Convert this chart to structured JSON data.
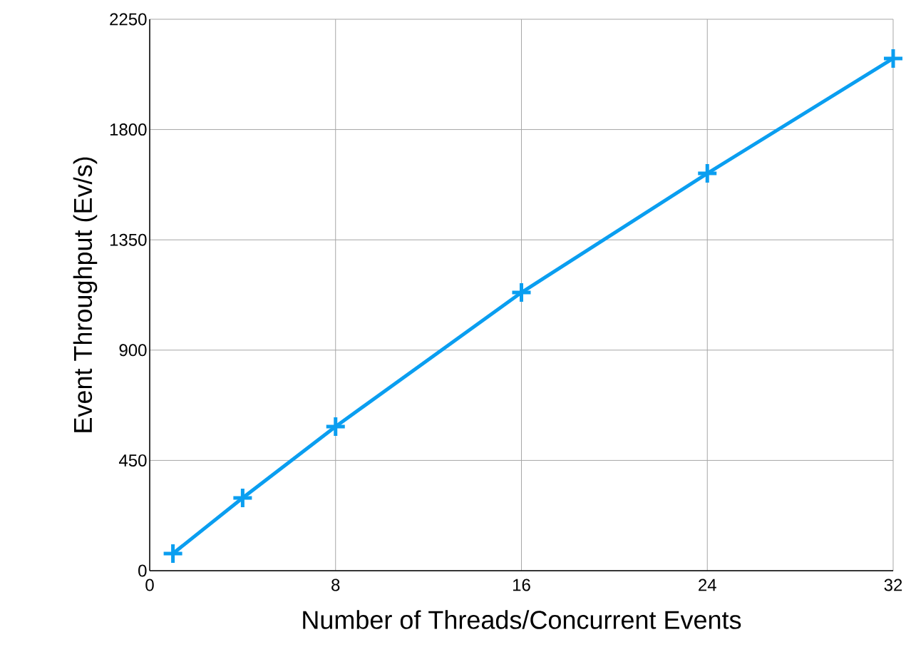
{
  "chart_data": {
    "type": "line",
    "xlabel": "Number of Threads/Concurrent Events",
    "ylabel": "Event Throughput (Ev/s)",
    "x": [
      1,
      4,
      8,
      16,
      24,
      32
    ],
    "series": [
      {
        "color": "#0a9ef0",
        "values": [
          70,
          297,
          588,
          1135,
          1621,
          2090
        ]
      }
    ],
    "xlim": [
      0,
      32
    ],
    "ylim": [
      0,
      2250
    ],
    "xticks": [
      0,
      8,
      16,
      24,
      32
    ],
    "yticks": [
      0,
      450,
      900,
      1350,
      1800,
      2250
    ],
    "grid": true,
    "marker": "cross",
    "line_style": "solid"
  }
}
